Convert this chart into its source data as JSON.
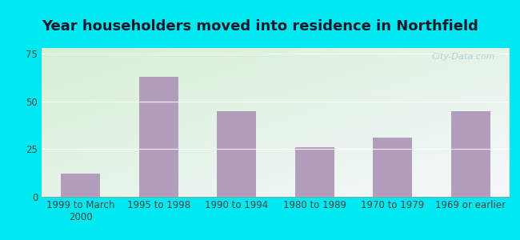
{
  "title": "Year householders moved into residence in Northfield",
  "categories": [
    "1999 to March\n2000",
    "1995 to 1998",
    "1990 to 1994",
    "1980 to 1989",
    "1970 to 1979",
    "1969 or earlier"
  ],
  "values": [
    12,
    63,
    45,
    26,
    31,
    45
  ],
  "bar_color": "#b39dbd",
  "yticks": [
    0,
    25,
    50,
    75
  ],
  "ylim": [
    0,
    78
  ],
  "bg_top_left": "#d6f0d6",
  "bg_bottom_right": "#e8f4f8",
  "outer_color": "#00e8f0",
  "title_fontsize": 13,
  "tick_fontsize": 8.5,
  "watermark": "City-Data.com",
  "watermark_color": "#aac8d8",
  "title_color": "#1a1a2e"
}
